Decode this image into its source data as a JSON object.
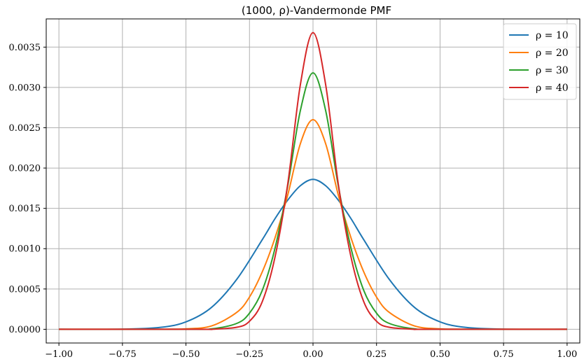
{
  "chart_data": {
    "type": "line",
    "title": "(1000, ρ)-Vandermonde PMF",
    "xlabel": "",
    "ylabel": "",
    "xlim": [
      -1.05,
      1.05
    ],
    "ylim": [
      -0.00017,
      0.00385
    ],
    "grid": true,
    "legend_position": "top-right",
    "x_ticks": [
      -1.0,
      -0.75,
      -0.5,
      -0.25,
      0.0,
      0.25,
      0.5,
      0.75,
      1.0
    ],
    "x_tick_labels": [
      "−1.00",
      "−0.75",
      "−0.50",
      "−0.25",
      "0.00",
      "0.25",
      "0.50",
      "0.75",
      "1.00"
    ],
    "y_ticks": [
      0.0,
      0.0005,
      0.001,
      0.0015,
      0.002,
      0.0025,
      0.003,
      0.0035
    ],
    "y_tick_labels": [
      "0.0000",
      "0.0005",
      "0.0010",
      "0.0015",
      "0.0020",
      "0.0025",
      "0.0030",
      "0.0035"
    ],
    "series": [
      {
        "name": "ρ = 10",
        "color": "#1f77b4",
        "x": [
          -1.0,
          -0.75,
          -0.6,
          -0.5,
          -0.4,
          -0.3,
          -0.2,
          -0.15,
          -0.1,
          -0.05,
          0.0,
          0.05,
          0.1,
          0.15,
          0.2,
          0.3,
          0.4,
          0.5,
          0.6,
          0.75,
          1.0
        ],
        "y": [
          0.0,
          1.5e-06,
          2.4e-05,
          9.2e-05,
          0.00027,
          0.00062,
          0.00111,
          0.00137,
          0.0016,
          0.00178,
          0.00186,
          0.00178,
          0.0016,
          0.00137,
          0.00111,
          0.00062,
          0.00027,
          9.2e-05,
          2.4e-05,
          1.5e-06,
          0.0
        ]
      },
      {
        "name": "ρ = 20",
        "color": "#ff7f0e",
        "x": [
          -1.0,
          -0.6,
          -0.5,
          -0.4,
          -0.3,
          -0.25,
          -0.2,
          -0.15,
          -0.1,
          -0.05,
          0.0,
          0.05,
          0.1,
          0.15,
          0.2,
          0.25,
          0.3,
          0.4,
          0.5,
          0.6,
          1.0
        ],
        "y": [
          0.0,
          7e-07,
          6e-06,
          4.1e-05,
          0.00021,
          0.0004,
          0.00071,
          0.00113,
          0.00166,
          0.0023,
          0.0026,
          0.0023,
          0.00166,
          0.00113,
          0.00071,
          0.0004,
          0.00021,
          4.1e-05,
          6e-06,
          7e-07,
          0.0
        ]
      },
      {
        "name": "ρ = 30",
        "color": "#2ca02c",
        "x": [
          -1.0,
          -0.5,
          -0.4,
          -0.3,
          -0.25,
          -0.2,
          -0.15,
          -0.1,
          -0.05,
          0.0,
          0.05,
          0.1,
          0.15,
          0.2,
          0.25,
          0.3,
          0.4,
          0.5,
          1.0
        ],
        "y": [
          0.0,
          4e-07,
          5.5e-06,
          7.3e-05,
          0.0002,
          0.00048,
          0.001,
          0.00177,
          0.00271,
          0.00318,
          0.00271,
          0.00177,
          0.001,
          0.00048,
          0.0002,
          7.3e-05,
          5.5e-06,
          4e-07,
          0.0
        ]
      },
      {
        "name": "ρ = 40",
        "color": "#d62728",
        "x": [
          -1.0,
          -0.45,
          -0.4,
          -0.3,
          -0.25,
          -0.2,
          -0.15,
          -0.1,
          -0.05,
          0.0,
          0.05,
          0.1,
          0.15,
          0.2,
          0.25,
          0.3,
          0.4,
          0.45,
          1.0
        ],
        "y": [
          0.0,
          1e-07,
          6e-07,
          2.5e-05,
          0.0001,
          0.00034,
          0.00089,
          0.00179,
          0.00303,
          0.00368,
          0.00303,
          0.00179,
          0.00089,
          0.00034,
          0.0001,
          2.5e-05,
          6e-07,
          1e-07,
          0.0
        ]
      }
    ]
  }
}
